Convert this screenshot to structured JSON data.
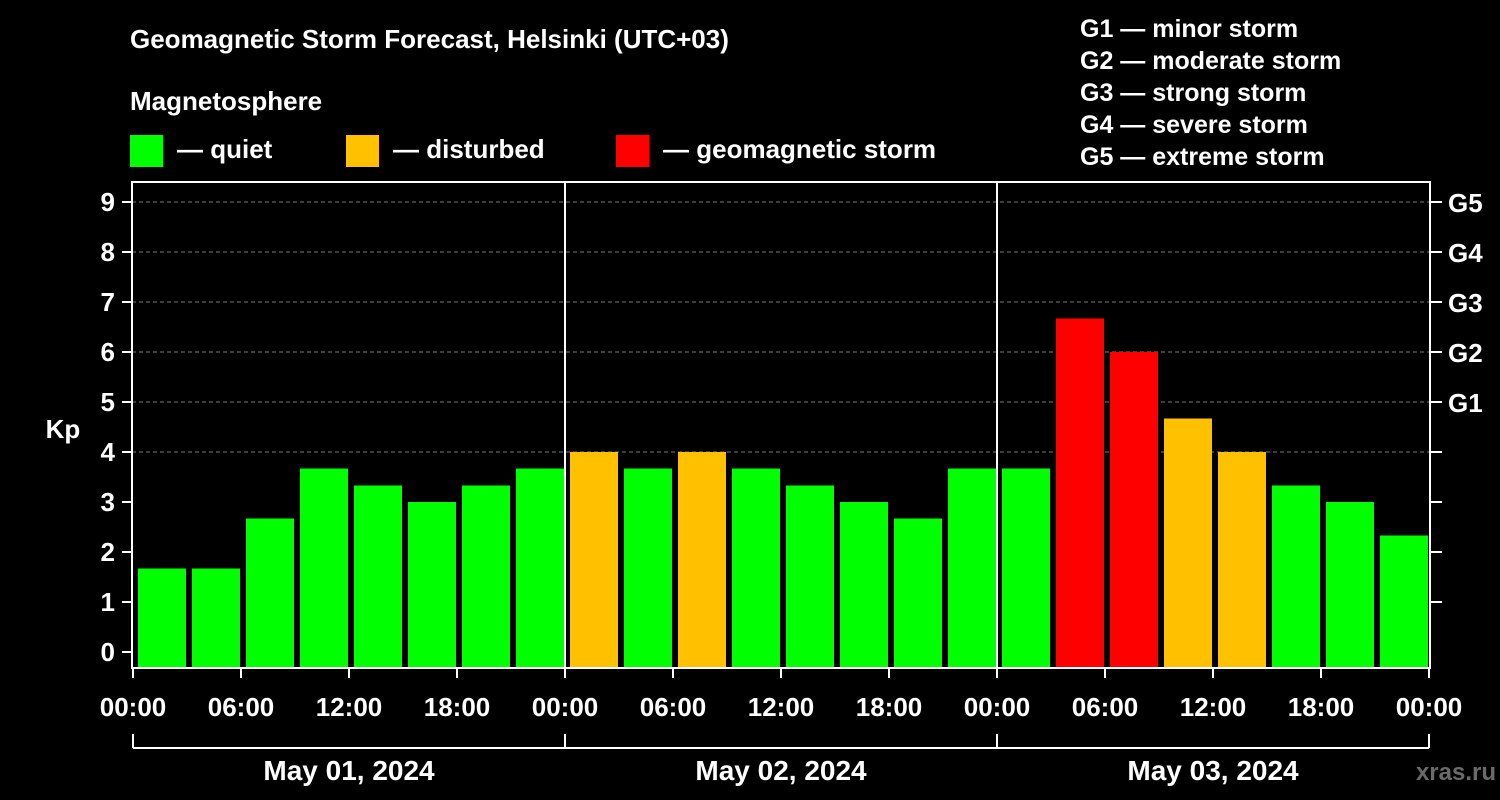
{
  "title": "Geomagnetic Storm Forecast, Helsinki (UTC+03)",
  "legend": {
    "heading": "Magnetosphere",
    "items": [
      {
        "label": "— quiet",
        "color": "#00ff00"
      },
      {
        "label": "— disturbed",
        "color": "#ffc000"
      },
      {
        "label": "— geomagnetic storm",
        "color": "#ff0000"
      }
    ]
  },
  "storm_scale": [
    "G1 — minor storm",
    "G2 — moderate storm",
    "G3 — strong storm",
    "G4 — severe storm",
    "G5 — extreme storm"
  ],
  "watermark": "xras.ru",
  "chart_data": {
    "type": "bar",
    "title": "Geomagnetic Storm Forecast, Helsinki (UTC+03)",
    "ylabel": "Kp",
    "ylim": [
      0,
      9
    ],
    "yticks": [
      "0",
      "1",
      "2",
      "3",
      "4",
      "5",
      "6",
      "7",
      "8",
      "9"
    ],
    "right_axis": [
      {
        "kp": 5,
        "label": "G1"
      },
      {
        "kp": 6,
        "label": "G2"
      },
      {
        "kp": 7,
        "label": "G3"
      },
      {
        "kp": 8,
        "label": "G4"
      },
      {
        "kp": 9,
        "label": "G5"
      }
    ],
    "xtick_labels": [
      "00:00",
      "06:00",
      "12:00",
      "18:00",
      "00:00",
      "06:00",
      "12:00",
      "18:00",
      "00:00",
      "06:00",
      "12:00",
      "18:00",
      "00:00"
    ],
    "days": [
      "May 01, 2024",
      "May 02, 2024",
      "May 03, 2024"
    ],
    "interval_hours": 3,
    "categories": [
      "May 01 00:00",
      "May 01 03:00",
      "May 01 06:00",
      "May 01 09:00",
      "May 01 12:00",
      "May 01 15:00",
      "May 01 18:00",
      "May 01 21:00",
      "May 02 00:00",
      "May 02 03:00",
      "May 02 06:00",
      "May 02 09:00",
      "May 02 12:00",
      "May 02 15:00",
      "May 02 18:00",
      "May 02 21:00",
      "May 03 00:00",
      "May 03 03:00",
      "May 03 06:00",
      "May 03 09:00",
      "May 03 12:00",
      "May 03 15:00",
      "May 03 18:00",
      "May 03 21:00"
    ],
    "values": [
      1.67,
      1.67,
      2.67,
      3.67,
      3.33,
      3.0,
      3.33,
      3.67,
      4.0,
      3.67,
      4.0,
      3.67,
      3.33,
      3.0,
      2.67,
      3.67,
      3.67,
      6.67,
      6.0,
      4.67,
      4.0,
      3.33,
      3.0,
      2.33
    ],
    "levels": [
      "quiet",
      "quiet",
      "quiet",
      "quiet",
      "quiet",
      "quiet",
      "quiet",
      "quiet",
      "disturbed",
      "quiet",
      "disturbed",
      "quiet",
      "quiet",
      "quiet",
      "quiet",
      "quiet",
      "quiet",
      "storm",
      "storm",
      "disturbed",
      "disturbed",
      "quiet",
      "quiet",
      "quiet"
    ],
    "colors": {
      "quiet": "#00ff00",
      "disturbed": "#ffc000",
      "storm": "#ff0000"
    },
    "grid": true
  }
}
